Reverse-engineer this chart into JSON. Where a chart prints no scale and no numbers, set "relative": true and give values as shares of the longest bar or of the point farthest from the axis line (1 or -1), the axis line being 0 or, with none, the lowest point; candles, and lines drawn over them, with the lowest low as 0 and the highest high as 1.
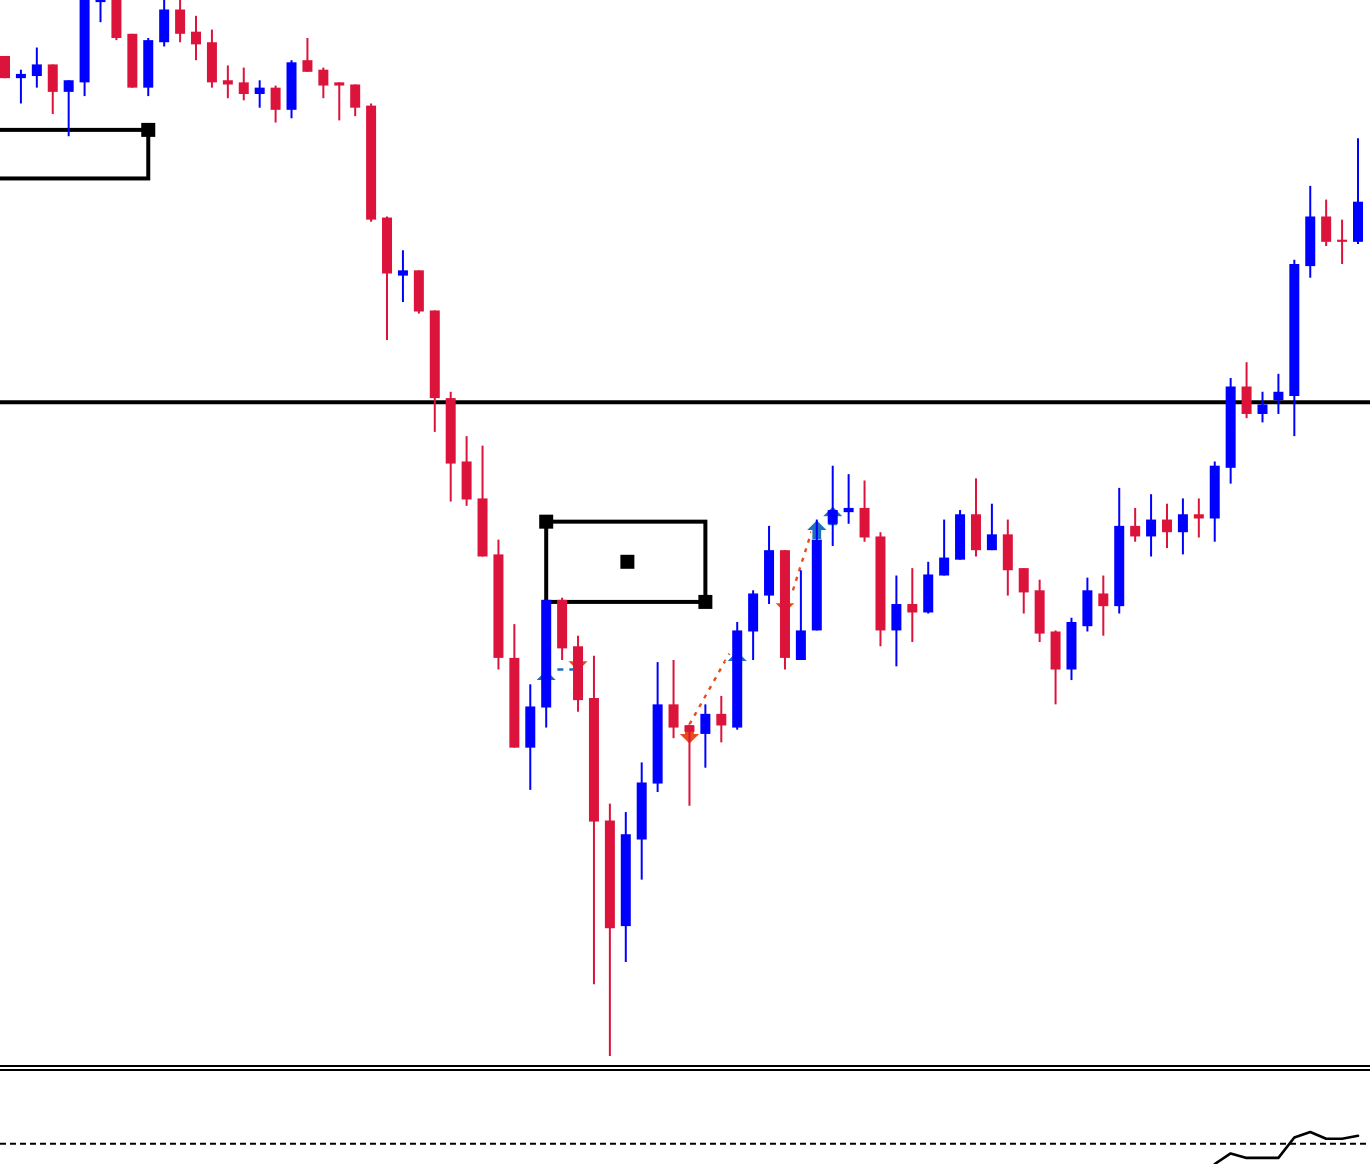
{
  "chart_data": [
    {
      "type": "candlestick",
      "relative": true,
      "categories": [
        null,
        null,
        null,
        null,
        null,
        null,
        null,
        null,
        null,
        null,
        null,
        null,
        null,
        null,
        null,
        null,
        null,
        null,
        null,
        null,
        null,
        null,
        null,
        null,
        null,
        null,
        null,
        null,
        null,
        null,
        null,
        null,
        null,
        null,
        null,
        null,
        null,
        null,
        null,
        null,
        null,
        null,
        null,
        null,
        null,
        null,
        null,
        null,
        null,
        null,
        null,
        null,
        null,
        null,
        null,
        null,
        null,
        null,
        null,
        null,
        null,
        null,
        null,
        null,
        null,
        null,
        null,
        null,
        null,
        null,
        null,
        null,
        null,
        null,
        null,
        null,
        null,
        null,
        null,
        null,
        null,
        null,
        null,
        null,
        null,
        null
      ],
      "ohlc": [
        [
          0.947,
          0.947,
          0.926,
          0.926
        ],
        [
          0.926,
          0.934,
          0.902,
          0.93
        ],
        [
          0.928,
          0.955,
          0.917,
          0.939
        ],
        [
          0.939,
          0.939,
          0.892,
          0.913
        ],
        [
          0.913,
          0.924,
          0.871,
          0.924
        ],
        [
          0.922,
          1,
          0.909,
          1
        ],
        [
          0.998,
          1,
          0.979,
          1
        ],
        [
          1,
          1,
          0.962,
          0.964
        ],
        [
          0.968,
          0.968,
          0.917,
          0.917
        ],
        [
          0.917,
          0.964,
          0.909,
          0.962
        ],
        [
          0.96,
          1,
          0.956,
          0.991
        ],
        [
          0.991,
          1,
          0.96,
          0.968
        ],
        [
          0.97,
          0.985,
          0.943,
          0.958
        ],
        [
          0.96,
          0.972,
          0.917,
          0.922
        ],
        [
          0.924,
          0.938,
          0.907,
          0.92
        ],
        [
          0.922,
          0.936,
          0.905,
          0.911
        ],
        [
          0.911,
          0.924,
          0.898,
          0.917
        ],
        [
          0.917,
          0.919,
          0.884,
          0.896
        ],
        [
          0.896,
          0.943,
          0.888,
          0.941
        ],
        [
          0.943,
          0.964,
          0.932,
          0.932
        ],
        [
          0.934,
          0.936,
          0.907,
          0.919
        ],
        [
          0.922,
          0.922,
          0.886,
          0.919
        ],
        [
          0.92,
          0.92,
          0.89,
          0.898
        ],
        [
          0.9,
          0.902,
          0.79,
          0.792
        ],
        [
          0.794,
          0.795,
          0.678,
          0.741
        ],
        [
          0.739,
          0.763,
          0.714,
          0.744
        ],
        [
          0.744,
          0.744,
          0.703,
          0.705
        ],
        [
          0.706,
          0.706,
          0.591,
          0.623
        ],
        [
          0.623,
          0.629,
          0.525,
          0.561
        ],
        [
          0.563,
          0.587,
          0.521,
          0.527
        ],
        [
          0.528,
          0.578,
          0.473,
          0.473
        ],
        [
          0.475,
          0.489,
          0.366,
          0.377
        ],
        [
          0.377,
          0.409,
          0.292,
          0.292
        ],
        [
          0.292,
          0.352,
          0.252,
          0.331
        ],
        [
          0.33,
          0.432,
          0.311,
          0.432
        ],
        [
          0.432,
          0.434,
          0.375,
          0.386
        ],
        [
          0.388,
          0.398,
          0.326,
          0.337
        ],
        [
          0.339,
          0.379,
          0.068,
          0.222
        ],
        [
          0.223,
          0.239,
          0,
          0.121
        ],
        [
          0.123,
          0.231,
          0.089,
          0.21
        ],
        [
          0.205,
          0.278,
          0.167,
          0.259
        ],
        [
          0.258,
          0.373,
          0.25,
          0.333
        ],
        [
          0.333,
          0.375,
          0.301,
          0.311
        ],
        [
          0.313,
          0.314,
          0.237,
          0.307
        ],
        [
          0.305,
          0.333,
          0.273,
          0.324
        ],
        [
          0.324,
          0.341,
          0.297,
          0.313
        ],
        [
          0.311,
          0.411,
          0.309,
          0.403
        ],
        [
          0.402,
          0.441,
          0.375,
          0.438
        ],
        [
          0.436,
          0.502,
          0.428,
          0.479
        ],
        [
          0.479,
          0.479,
          0.366,
          0.377
        ],
        [
          0.375,
          0.46,
          0.375,
          0.403
        ],
        [
          0.403,
          0.508,
          0.403,
          0.489
        ],
        [
          0.504,
          0.559,
          0.483,
          0.517
        ],
        [
          0.515,
          0.551,
          0.504,
          0.519
        ],
        [
          0.519,
          0.545,
          0.487,
          0.491
        ],
        [
          0.492,
          0.496,
          0.388,
          0.403
        ],
        [
          0.403,
          0.455,
          0.369,
          0.428
        ],
        [
          0.428,
          0.462,
          0.392,
          0.42
        ],
        [
          0.42,
          0.468,
          0.419,
          0.456
        ],
        [
          0.455,
          0.508,
          0.455,
          0.472
        ],
        [
          0.47,
          0.517,
          0.47,
          0.513
        ],
        [
          0.513,
          0.547,
          0.473,
          0.479
        ],
        [
          0.479,
          0.523,
          0.479,
          0.494
        ],
        [
          0.494,
          0.508,
          0.436,
          0.46
        ],
        [
          0.462,
          0.462,
          0.419,
          0.439
        ],
        [
          0.441,
          0.451,
          0.392,
          0.4
        ],
        [
          0.402,
          0.403,
          0.333,
          0.366
        ],
        [
          0.366,
          0.415,
          0.356,
          0.411
        ],
        [
          0.407,
          0.453,
          0.402,
          0.441
        ],
        [
          0.438,
          0.455,
          0.398,
          0.426
        ],
        [
          0.426,
          0.538,
          0.419,
          0.502
        ],
        [
          0.502,
          0.519,
          0.487,
          0.492
        ],
        [
          0.492,
          0.532,
          0.473,
          0.508
        ],
        [
          0.508,
          0.523,
          0.481,
          0.496
        ],
        [
          0.496,
          0.528,
          0.475,
          0.513
        ],
        [
          0.513,
          0.528,
          0.491,
          0.509
        ],
        [
          0.509,
          0.563,
          0.487,
          0.559
        ],
        [
          0.557,
          0.642,
          0.542,
          0.634
        ],
        [
          0.634,
          0.657,
          0.604,
          0.608
        ],
        [
          0.608,
          0.629,
          0.6,
          0.617
        ],
        [
          0.621,
          0.646,
          0.608,
          0.629
        ],
        [
          0.625,
          0.754,
          0.587,
          0.75
        ],
        [
          0.748,
          0.824,
          0.737,
          0.795
        ],
        [
          0.795,
          0.811,
          0.767,
          0.771
        ],
        [
          0.773,
          0.792,
          0.75,
          0.771
        ],
        [
          0.771,
          0.869,
          0.769,
          0.809
        ]
      ],
      "colors": [
        "#dc143c",
        "#0000ff",
        "#0000ff",
        "#dc143c",
        "#0000ff",
        "#0000ff",
        "#0000ff",
        "#dc143c",
        "#dc143c",
        "#0000ff",
        "#0000ff",
        "#dc143c",
        "#dc143c",
        "#dc143c",
        "#dc143c",
        "#dc143c",
        "#0000ff",
        "#dc143c",
        "#0000ff",
        "#dc143c",
        "#dc143c",
        "#dc143c",
        "#dc143c",
        "#dc143c",
        "#dc143c",
        "#0000ff",
        "#dc143c",
        "#dc143c",
        "#dc143c",
        "#dc143c",
        "#dc143c",
        "#dc143c",
        "#dc143c",
        "#0000ff",
        "#0000ff",
        "#dc143c",
        "#dc143c",
        "#dc143c",
        "#dc143c",
        "#0000ff",
        "#0000ff",
        "#0000ff",
        "#dc143c",
        "#dc143c",
        "#0000ff",
        "#dc143c",
        "#0000ff",
        "#0000ff",
        "#0000ff",
        "#dc143c",
        "#0000ff",
        "#0000ff",
        "#0000ff",
        "#0000ff",
        "#dc143c",
        "#dc143c",
        "#0000ff",
        "#dc143c",
        "#0000ff",
        "#0000ff",
        "#0000ff",
        "#dc143c",
        "#0000ff",
        "#dc143c",
        "#dc143c",
        "#dc143c",
        "#dc143c",
        "#0000ff",
        "#0000ff",
        "#dc143c",
        "#0000ff",
        "#dc143c",
        "#0000ff",
        "#dc143c",
        "#0000ff",
        "#dc143c",
        "#0000ff",
        "#0000ff",
        "#dc143c",
        "#0000ff",
        "#0000ff",
        "#0000ff",
        "#0000ff",
        "#dc143c",
        "#dc143c",
        "#0000ff"
      ],
      "ref_lines": [
        {
          "axis": "y",
          "value": 0.619,
          "color": "#000000"
        }
      ]
    },
    {
      "type": "line",
      "relative": true,
      "categories": [
        null,
        null,
        null,
        null,
        null,
        null,
        null,
        null,
        null,
        null,
        null,
        null,
        null,
        null,
        null,
        null,
        null,
        null,
        null,
        null,
        null,
        null,
        null,
        null,
        null,
        null,
        null,
        null,
        null,
        null,
        null,
        null,
        null,
        null,
        null,
        null,
        null,
        null,
        null,
        null,
        null,
        null,
        null,
        null,
        null,
        null,
        null,
        null,
        null,
        null,
        null,
        null,
        null,
        null,
        null,
        null,
        null,
        null,
        null,
        null,
        null,
        null,
        null,
        null,
        null,
        null,
        null,
        null,
        null,
        null,
        null,
        null,
        null,
        null,
        null,
        null,
        null,
        null,
        null,
        null,
        null,
        null,
        null,
        null,
        null,
        null
      ],
      "series": [
        {
          "color": "#000000",
          "values": [
            null,
            null,
            null,
            null,
            null,
            null,
            null,
            null,
            null,
            null,
            null,
            null,
            null,
            null,
            null,
            null,
            null,
            null,
            null,
            null,
            null,
            null,
            null,
            null,
            null,
            null,
            null,
            null,
            null,
            null,
            null,
            null,
            null,
            null,
            null,
            null,
            null,
            null,
            null,
            null,
            null,
            null,
            null,
            null,
            null,
            null,
            null,
            null,
            null,
            null,
            null,
            null,
            null,
            null,
            null,
            null,
            null,
            null,
            null,
            null,
            null,
            null,
            null,
            null,
            null,
            null,
            null,
            null,
            null,
            null,
            null,
            null,
            null,
            null,
            null,
            null,
            0,
            0.33,
            0.19,
            0.19,
            0.19,
            0.83,
            1,
            0.79,
            0.79,
            0.88
          ]
        }
      ],
      "ref_lines": [
        {
          "axis": "y",
          "value": 0.63,
          "color": "#000000",
          "line_style": "dashed"
        }
      ]
    }
  ]
}
